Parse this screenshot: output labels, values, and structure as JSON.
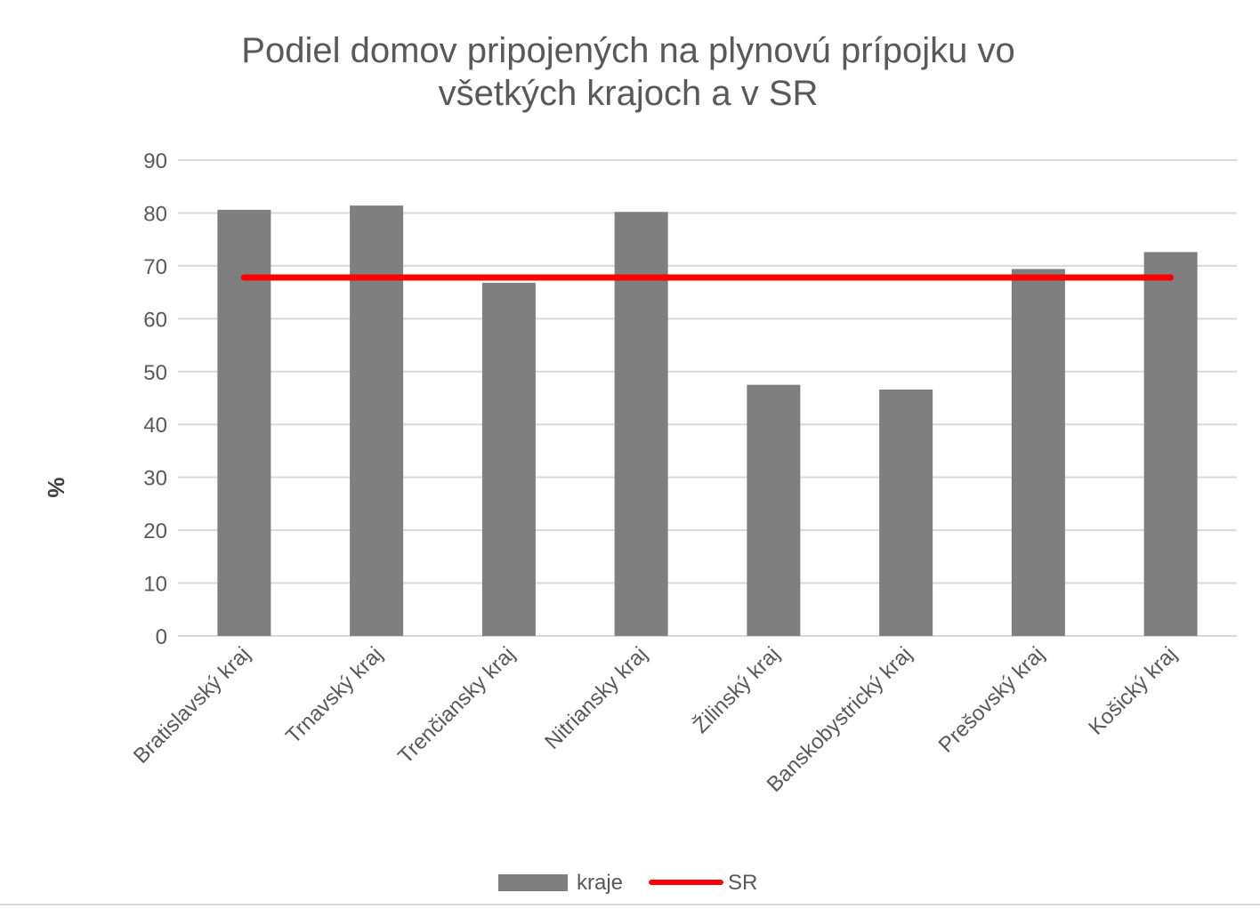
{
  "chart_data": {
    "type": "bar",
    "title_lines": [
      "Podiel domov pripojených na plynovú prípojku vo",
      "všetkých krajoch a v SR"
    ],
    "ylabel": "%",
    "xlabel": "",
    "ylim": [
      0,
      90
    ],
    "yticks": [
      0,
      10,
      20,
      30,
      40,
      50,
      60,
      70,
      80,
      90
    ],
    "grid": true,
    "legend_position": "bottom",
    "categories": [
      "Bratislavský kraj",
      "Trnavský kraj",
      "Trenčiansky kraj",
      "Nitriansky kraj",
      "Žilinský kraj",
      "Banskobystrický kraj",
      "Prešovský kraj",
      "Košický kraj"
    ],
    "series": [
      {
        "name": "kraje",
        "kind": "bar",
        "color": "#7f7f7f",
        "values": [
          80.6,
          81.4,
          66.8,
          80.2,
          47.5,
          46.6,
          69.4,
          72.6
        ]
      },
      {
        "name": "SR",
        "kind": "line",
        "color": "#ff0000",
        "values": [
          67.8,
          67.8,
          67.8,
          67.8,
          67.8,
          67.8,
          67.8,
          67.8
        ]
      }
    ]
  }
}
